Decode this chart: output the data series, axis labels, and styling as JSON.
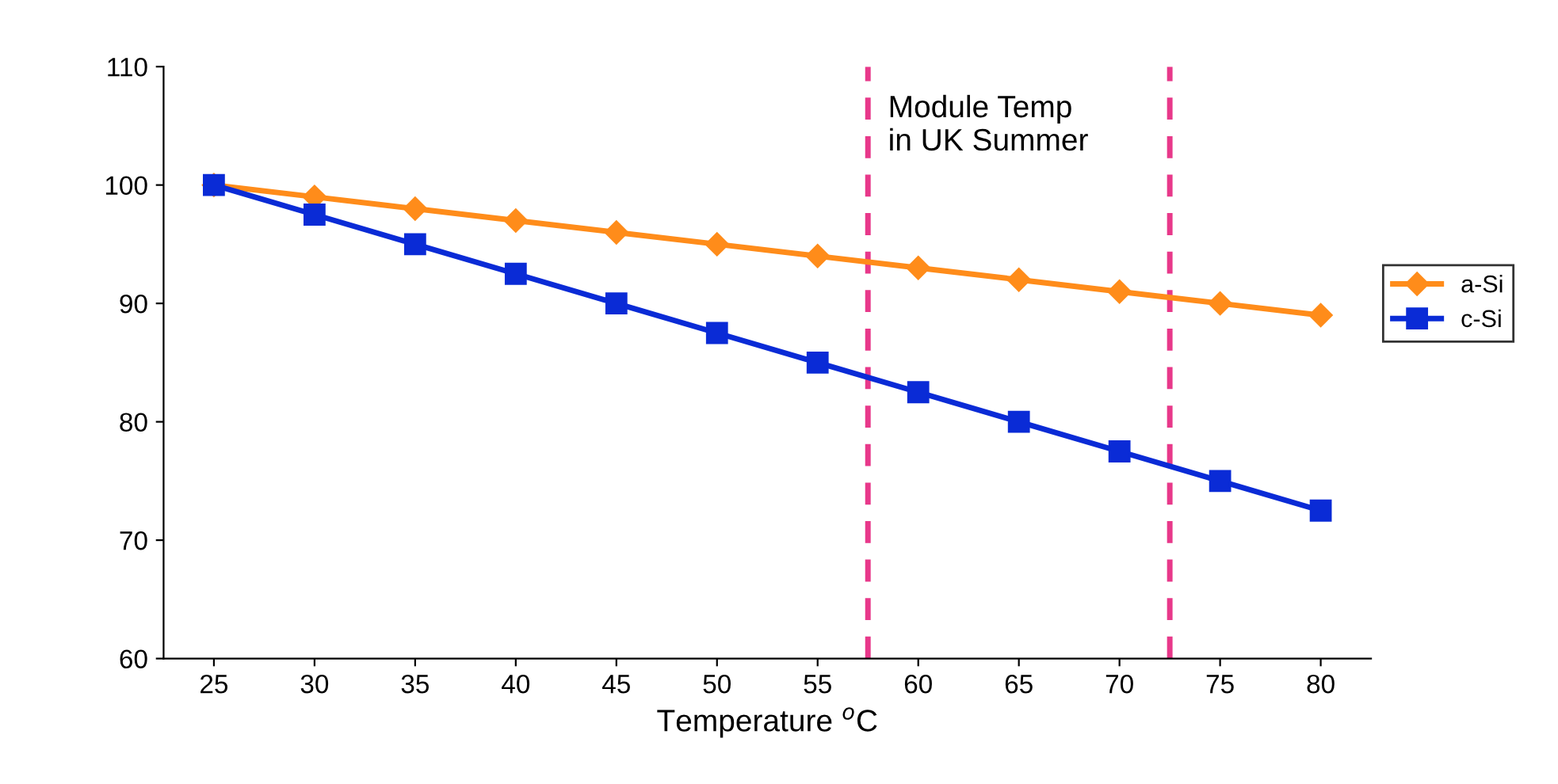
{
  "chart_data": {
    "type": "line",
    "xlabel": "Temperature $^{o}$C",
    "x": [
      25,
      30,
      35,
      40,
      45,
      50,
      55,
      60,
      65,
      70,
      75,
      80
    ],
    "series": [
      {
        "name": "a-Si",
        "color": "#ff8c1a",
        "marker": "diamond",
        "values": [
          100,
          99,
          98,
          97,
          96,
          95,
          94,
          93,
          92,
          91,
          90,
          89
        ]
      },
      {
        "name": "c-Si",
        "color": "#0a2bd6",
        "marker": "square",
        "values": [
          100,
          97.5,
          95,
          92.5,
          90,
          87.5,
          85,
          82.5,
          80,
          77.5,
          75,
          72.5
        ]
      }
    ],
    "xlim": [
      22.5,
      82.5
    ],
    "xticks": [
      25,
      30,
      35,
      40,
      45,
      50,
      55,
      60,
      65,
      70,
      75,
      80
    ],
    "ylim": [
      60,
      110
    ],
    "yticks": [
      60,
      70,
      80,
      90,
      100,
      110
    ],
    "ref_lines": [
      {
        "axis": "x",
        "value": 57.5,
        "color": "#e8388a",
        "line_style": "dashed"
      },
      {
        "axis": "x",
        "value": 72.5,
        "color": "#e8388a",
        "line_style": "dashed"
      }
    ],
    "annotations": [
      "Module Temp\nin UK Summer"
    ],
    "grid": false,
    "legend": "right",
    "line_style": "solid"
  }
}
